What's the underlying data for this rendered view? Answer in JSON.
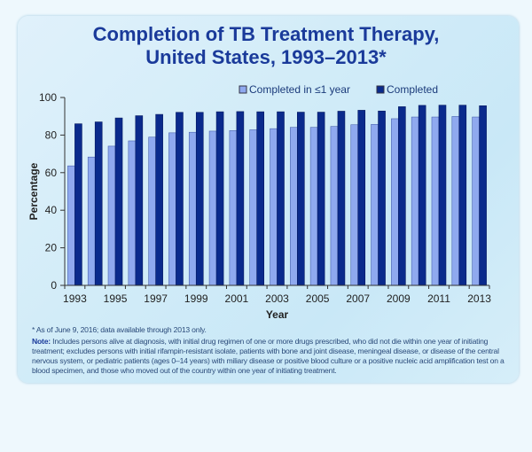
{
  "chart_data": {
    "type": "bar",
    "title": "Completion of TB Treatment Therapy, United States, 1993–2013*",
    "title_lines": [
      "Completion of TB Treatment Therapy,",
      "United States, 1993–2013*"
    ],
    "xlabel": "Year",
    "ylabel": "Percentage",
    "ylim": [
      0,
      100
    ],
    "yticks": [
      0,
      20,
      40,
      60,
      80,
      100
    ],
    "xtick_labels": [
      "1993",
      "1995",
      "1997",
      "1999",
      "2001",
      "2003",
      "2005",
      "2007",
      "2009",
      "2011",
      "2013"
    ],
    "categories": [
      "1993",
      "1994",
      "1995",
      "1996",
      "1997",
      "1998",
      "1999",
      "2000",
      "2001",
      "2002",
      "2003",
      "2004",
      "2005",
      "2006",
      "2007",
      "2008",
      "2009",
      "2010",
      "2011",
      "2012",
      "2013"
    ],
    "legend_position": "top-right",
    "grid": false,
    "series": [
      {
        "name": "Completed in ≤1 year",
        "color": "#8fa9ef",
        "values": [
          63.6,
          68.3,
          74.1,
          76.9,
          78.9,
          81.2,
          81.5,
          82.1,
          82.4,
          82.8,
          83.4,
          84.1,
          84.1,
          84.6,
          85.5,
          85.7,
          88.7,
          89.6,
          89.6,
          89.9,
          89.6
        ]
      },
      {
        "name": "Completed",
        "color": "#0a2a8c",
        "values": [
          86.0,
          87.0,
          89.1,
          90.3,
          91.0,
          92.1,
          92.1,
          92.4,
          92.5,
          92.4,
          92.4,
          92.2,
          92.2,
          92.7,
          93.2,
          92.8,
          95.1,
          95.8,
          95.9,
          95.9,
          95.6
        ]
      }
    ]
  },
  "footnote": "* As of June 9, 2016; data available through 2013 only.",
  "note_label": "Note:",
  "note_text": "Includes persons alive at diagnosis, with initial drug regimen of one or more drugs prescribed, who did not die within one year of initiating treatment; excludes persons with initial rifampin-resistant isolate, patients with bone and joint disease, meningeal disease, or disease of the central nervous system, or pediatric patients (ages 0–14 years) with miliary disease or positive blood culture or a positive nucleic acid amplification test on a blood specimen, and those who moved out of the country within one year of initiating treatment."
}
